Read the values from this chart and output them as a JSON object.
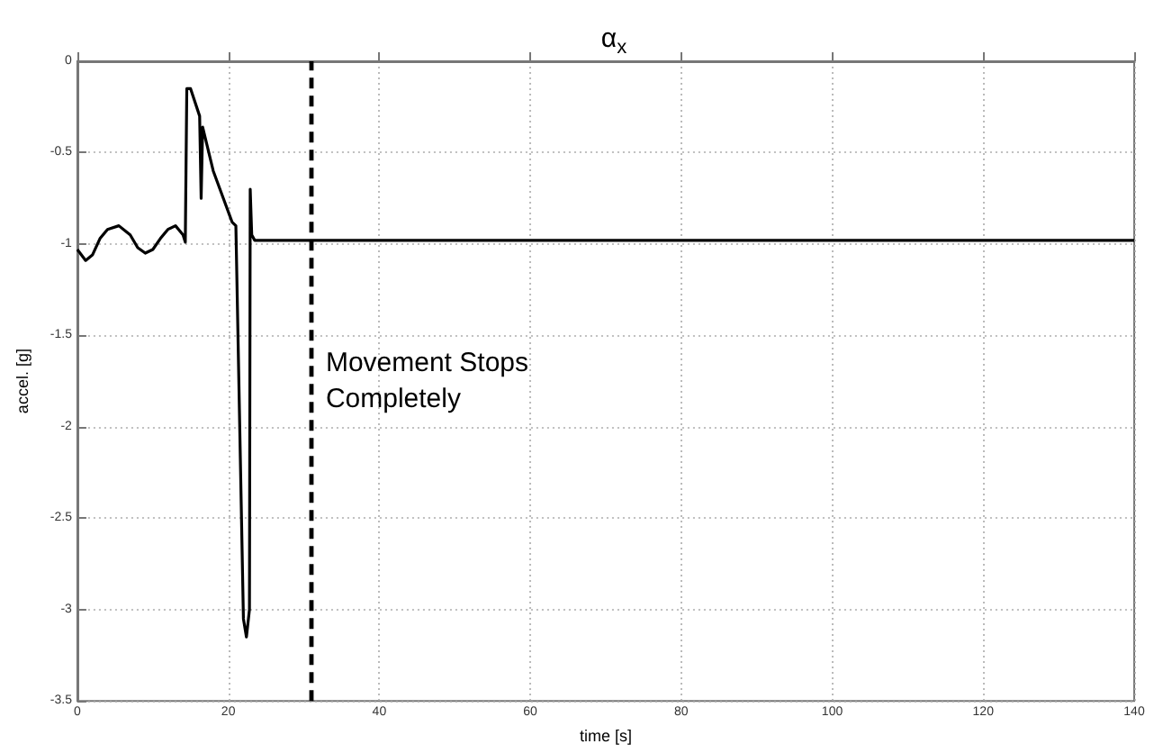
{
  "chart_data": {
    "type": "line",
    "title": "α$_{x}$",
    "xlabel": "time [s]",
    "ylabel": "accel. [g]",
    "x": [
      0,
      1.1,
      2,
      3,
      4,
      5.5,
      7,
      8,
      9,
      10,
      11,
      12,
      13,
      14,
      14.3,
      14.5,
      15,
      16.2,
      16.4,
      16.5,
      16.6,
      18,
      20.5,
      21,
      22,
      22.4,
      22.8,
      22.9,
      23.1,
      23.5,
      31,
      60,
      100,
      140
    ],
    "series": [
      {
        "color": "#000000",
        "values": [
          -1.03,
          -1.09,
          -1.06,
          -0.97,
          -0.92,
          -0.9,
          -0.95,
          -1.02,
          -1.05,
          -1.03,
          -0.97,
          -0.92,
          -0.9,
          -0.95,
          -0.99,
          -0.15,
          -0.15,
          -0.3,
          -0.75,
          -0.75,
          -0.36,
          -0.6,
          -0.88,
          -0.9,
          -3.05,
          -3.15,
          -3.0,
          -0.7,
          -0.95,
          -0.98,
          -0.98,
          -0.98,
          -0.98,
          -0.98
        ]
      }
    ],
    "xlim": [
      0,
      140
    ],
    "xticks": [
      0,
      20,
      40,
      60,
      80,
      100,
      120,
      140
    ],
    "ylim": [
      -3.5,
      0
    ],
    "yticks": [
      -3.5,
      -3,
      -2.5,
      -2,
      -1.5,
      -1,
      -0.5,
      0
    ],
    "grid": true,
    "marker": "none",
    "line_style": "solid",
    "ref_lines": [
      {
        "axis": "x",
        "value": 31,
        "label": null,
        "color": "#000000",
        "line_style": "dashed"
      }
    ],
    "annotations": [
      {
        "text": "Movement Stops\nCompletely",
        "x": 31,
        "y": -1.75
      }
    ]
  }
}
